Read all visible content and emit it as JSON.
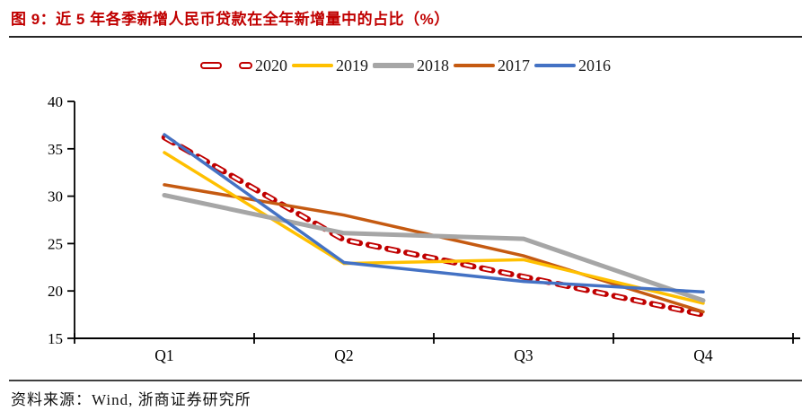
{
  "title": "图 9：近 5 年各季新增人民币贷款在全年新增量中的占比（%）",
  "title_color": "#C00000",
  "source_note": "资料来源：Wind, 浙商证券研究所",
  "chart_data": {
    "type": "line",
    "title": "近5年各季新增人民币贷款在全年新增量中的占比（%）",
    "categories": [
      "Q1",
      "Q2",
      "Q3",
      "Q4"
    ],
    "series": [
      {
        "name": "2020",
        "color": "#C00000",
        "line_style": "dashed",
        "stroke_width": 6.5,
        "values": [
          36.2,
          25.4,
          21.5,
          17.5
        ]
      },
      {
        "name": "2019",
        "color": "#FFC000",
        "line_style": "solid",
        "stroke_width": 3.5,
        "values": [
          34.6,
          22.9,
          23.3,
          18.7
        ]
      },
      {
        "name": "2018",
        "color": "#A6A6A6",
        "line_style": "solid",
        "stroke_width": 5,
        "values": [
          30.1,
          26.1,
          25.5,
          19.0
        ]
      },
      {
        "name": "2017",
        "color": "#C55A11",
        "line_style": "solid",
        "stroke_width": 3.5,
        "values": [
          31.2,
          28.0,
          23.7,
          17.8
        ]
      },
      {
        "name": "2016",
        "color": "#4472C4",
        "line_style": "solid",
        "stroke_width": 3.5,
        "values": [
          36.5,
          23.0,
          21.0,
          19.9
        ]
      }
    ],
    "ylim": [
      15,
      40
    ],
    "yticks": [
      15,
      20,
      25,
      30,
      35,
      40
    ],
    "grid": false,
    "legend_position": "top-center",
    "axis_color": "#000000"
  }
}
